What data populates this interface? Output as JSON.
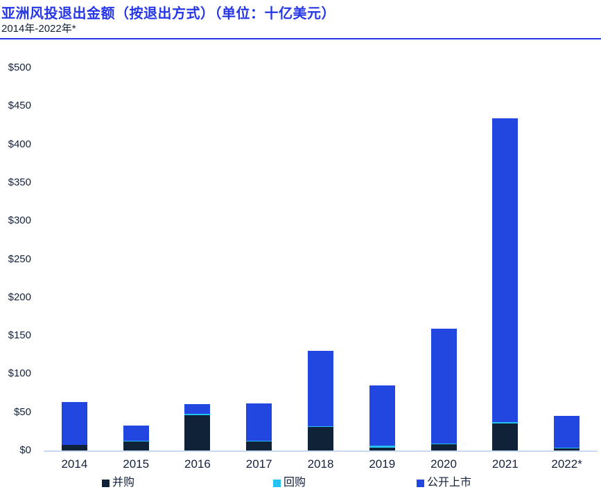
{
  "header": {
    "title": "亚洲风投退出金额（按退出方式）（单位：十亿美元）",
    "subtitle": "2014年-2022年*"
  },
  "colors": {
    "title_blue": "#2535e8",
    "divider_blue": "#2535e8",
    "axis_line": "#c9daf3",
    "text_dark": "#13223c",
    "ma_navy": "#0f2238",
    "buyback_cyan": "#25c2f2",
    "ipo_blue": "#2247e0"
  },
  "chart_data": {
    "type": "bar",
    "stacked": true,
    "title": "亚洲风投退出金额（按退出方式）（单位：十亿美元）",
    "subtitle": "2014年-2022年*",
    "categories": [
      "2014",
      "2015",
      "2016",
      "2017",
      "2018",
      "2019",
      "2020",
      "2021",
      "2022*"
    ],
    "series": [
      {
        "name": "并购",
        "color": "#0f2238",
        "values": [
          7,
          12,
          46,
          12,
          31,
          3.5,
          8.5,
          35,
          3
        ]
      },
      {
        "name": "回购",
        "color": "#25c2f2",
        "values": [
          0.4,
          0.6,
          2,
          0.4,
          1,
          2.5,
          0.5,
          2,
          0.4
        ]
      },
      {
        "name": "公开上市",
        "color": "#2247e0",
        "values": [
          55.6,
          20,
          13,
          49,
          98.5,
          79,
          150,
          397,
          41.6
        ]
      }
    ],
    "totals": [
      63,
      32.6,
      61,
      61.4,
      130.5,
      85,
      159,
      434,
      45
    ],
    "ylabel_ticks": [
      "$0",
      "$50",
      "$100",
      "$150",
      "$200",
      "$250",
      "$300",
      "$350",
      "$400",
      "$450",
      "$500"
    ],
    "ylim": [
      0,
      500
    ],
    "ytick_step": 50,
    "ytick_prefix": "$",
    "grid": false,
    "legend_position": "bottom",
    "legend": [
      "并购",
      "回购",
      "公开上市"
    ]
  }
}
